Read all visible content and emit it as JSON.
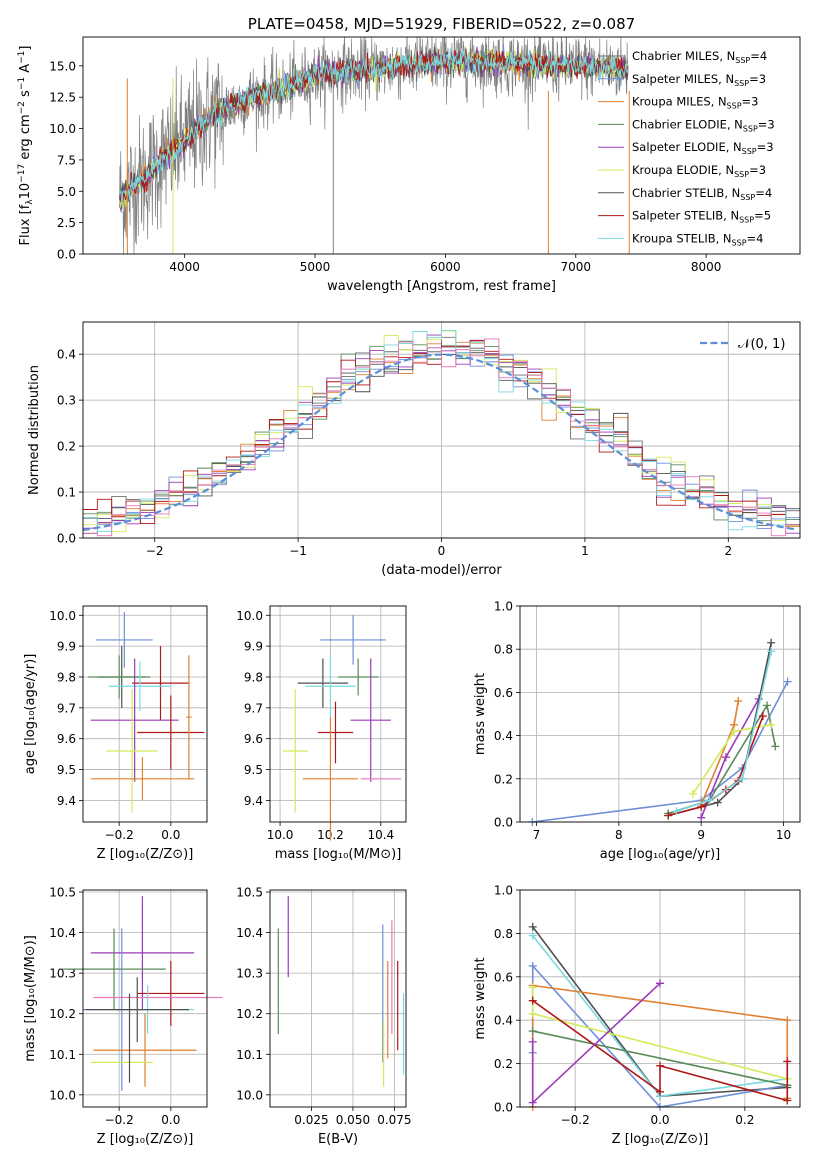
{
  "colors": {
    "cm": "#6f6f6f",
    "sm": "#6f8fd8",
    "km": "#e08030",
    "ce": "#5a8a5a",
    "se": "#9a3ab8",
    "ke": "#d4ea5a",
    "cs": "#505050",
    "ss": "#b01818",
    "ks": "#7ad8e0",
    "x_extra": "#e878b8"
  },
  "chart_data": [
    {
      "id": "spectrum",
      "type": "line",
      "title": "PLATE=0458, MJD=51929, FIBERID=0522, z=0.087",
      "xlabel": "wavelength [Angstrom, rest frame]",
      "ylabel": "Flux [f$_\\lambda$10$^{-17}$ erg cm$^{-2}$ s$^{-1}$ A$^{-1}$]",
      "ylabel_parts": [
        "Flux [f",
        "λ",
        "10",
        "−17",
        " erg cm",
        "−2",
        " s",
        "−1",
        " A",
        "−1",
        "]"
      ],
      "xlim": [
        3220,
        8720
      ],
      "ylim": [
        0,
        17.3
      ],
      "xticks": [
        4000,
        5000,
        6000,
        7000,
        8000
      ],
      "yticks": [
        "0.0",
        "2.5",
        "5.0",
        "7.5",
        "10.0",
        "12.5",
        "15.0"
      ],
      "data_range": [
        3500,
        7400
      ],
      "continuum": [
        [
          3500,
          4.5
        ],
        [
          3700,
          6.2
        ],
        [
          3850,
          7.8
        ],
        [
          4000,
          9.0
        ],
        [
          4200,
          11.0
        ],
        [
          4500,
          12.5
        ],
        [
          4800,
          13.3
        ],
        [
          5000,
          14.2
        ],
        [
          5200,
          14.6
        ],
        [
          5500,
          14.8
        ],
        [
          5800,
          15.2
        ],
        [
          6100,
          15.4
        ],
        [
          6400,
          15.3
        ],
        [
          6700,
          15.1
        ],
        [
          7000,
          15.0
        ],
        [
          7200,
          14.9
        ],
        [
          7400,
          14.8
        ]
      ],
      "legend_position": "upper right",
      "legend": [
        {
          "name": "Chabrier MILES, N",
          "sub": "SSP",
          "val": "=4",
          "ckey": "cm"
        },
        {
          "name": "Salpeter MILES, N",
          "sub": "SSP",
          "val": "=3",
          "ckey": "sm"
        },
        {
          "name": "Kroupa MILES, N",
          "sub": "SSP",
          "val": "=3",
          "ckey": "km"
        },
        {
          "name": "Chabrier ELODIE, N",
          "sub": "SSP",
          "val": "=3",
          "ckey": "ce"
        },
        {
          "name": "Salpeter ELODIE, N",
          "sub": "SSP",
          "val": "=3",
          "ckey": "se"
        },
        {
          "name": "Kroupa ELODIE, N",
          "sub": "SSP",
          "val": "=3",
          "ckey": "ke"
        },
        {
          "name": "Chabrier STELIB, N",
          "sub": "SSP",
          "val": "=4",
          "ckey": "cs"
        },
        {
          "name": "Salpeter STELIB, N",
          "sub": "SSP",
          "val": "=5",
          "ckey": "ss"
        },
        {
          "name": "Kroupa STELIB, N",
          "sub": "SSP",
          "val": "=4",
          "ckey": "ks"
        }
      ]
    },
    {
      "id": "residuals",
      "type": "histogram",
      "xlabel": "(data-model)/error",
      "ylabel": "Normed distribution",
      "xlim": [
        -2.5,
        2.5
      ],
      "ylim": [
        0,
        0.47
      ],
      "xticks": [
        "−2",
        "−1",
        "0",
        "1",
        "2"
      ],
      "xtick_vals": [
        -2,
        -1,
        0,
        1,
        2
      ],
      "yticks": [
        "0.0",
        "0.1",
        "0.2",
        "0.3",
        "0.4"
      ],
      "ytick_vals": [
        0,
        0.1,
        0.2,
        0.3,
        0.4
      ],
      "grid": true,
      "bin_width": 0.1,
      "gaussian_label": "𝒩(0, 1)",
      "gaussian_color": "#5b8ed6",
      "legend_position": "upper right"
    },
    {
      "id": "age_vs_Z",
      "type": "errorbar",
      "xlabel": "Z [log₁₀(Z/Z⊙)]",
      "ylabel": "age  [log₁₀(age/yr)]",
      "xlim": [
        -0.34,
        0.14
      ],
      "ylim": [
        9.33,
        10.03
      ],
      "xticks": [
        "−0.2",
        "0.0"
      ],
      "xtick_vals": [
        -0.2,
        0.0
      ],
      "yticks": [
        "9.4",
        "9.5",
        "9.6",
        "9.7",
        "9.8",
        "9.9",
        "10.0"
      ],
      "ytick_vals": [
        9.4,
        9.5,
        9.6,
        9.7,
        9.8,
        9.9,
        10.0
      ],
      "grid": true,
      "points": [
        {
          "ckey": "sm",
          "x": -0.18,
          "xerr": 0.11,
          "y": 9.92,
          "yerr": 0.09
        },
        {
          "ckey": "cs",
          "x": -0.19,
          "xerr": 0.09,
          "y": 9.8,
          "yerr": 0.1
        },
        {
          "ckey": "ce",
          "x": -0.2,
          "xerr": 0.12,
          "y": 9.8,
          "yerr": 0.07
        },
        {
          "ckey": "ss",
          "x": -0.04,
          "xerr": 0.11,
          "y": 9.78,
          "yerr": 0.12
        },
        {
          "ckey": "ks",
          "x": -0.12,
          "xerr": 0.12,
          "y": 9.77,
          "yerr": 0.08
        },
        {
          "ckey": "se",
          "x": -0.14,
          "xerr": 0.17,
          "y": 9.66,
          "yerr": 0.2
        },
        {
          "ckey": "ss",
          "x": 0.0,
          "xerr": 0.13,
          "y": 9.62,
          "yerr": 0.12
        },
        {
          "ckey": "ke",
          "x": -0.15,
          "xerr": 0.1,
          "y": 9.56,
          "yerr": 0.2
        },
        {
          "ckey": "km",
          "x": -0.11,
          "xerr": 0.2,
          "y": 9.47,
          "yerr": 0.07
        },
        {
          "ckey": "km",
          "x": 0.07,
          "xerr": 0.01,
          "y": 9.67,
          "yerr": 0.2
        }
      ]
    },
    {
      "id": "age_vs_mass",
      "type": "errorbar",
      "xlabel": "mass [log₁₀(M/M⊙)]",
      "xlim": [
        9.96,
        10.5
      ],
      "ylim": [
        9.33,
        10.03
      ],
      "xticks": [
        "10.0",
        "10.2",
        "10.4"
      ],
      "xtick_vals": [
        10.0,
        10.2,
        10.4
      ],
      "yticks": [
        "9.4",
        "9.5",
        "9.6",
        "9.7",
        "9.8",
        "9.9",
        "10.0"
      ],
      "ytick_vals": [
        9.4,
        9.5,
        9.6,
        9.7,
        9.8,
        9.9,
        10.0
      ],
      "grid": true,
      "points": [
        {
          "ckey": "sm",
          "x": 10.29,
          "xerr": 0.13,
          "y": 9.92,
          "yerr": 0.08
        },
        {
          "ckey": "cs",
          "x": 10.17,
          "xerr": 0.1,
          "y": 9.78,
          "yerr": 0.08
        },
        {
          "ckey": "ce",
          "x": 10.31,
          "xerr": 0.08,
          "y": 9.8,
          "yerr": 0.06
        },
        {
          "ckey": "ks",
          "x": 10.2,
          "xerr": 0.1,
          "y": 9.77,
          "yerr": 0.1
        },
        {
          "ckey": "se",
          "x": 10.36,
          "xerr": 0.08,
          "y": 9.66,
          "yerr": 0.2
        },
        {
          "ckey": "ss",
          "x": 10.22,
          "xerr": 0.07,
          "y": 9.62,
          "yerr": 0.1
        },
        {
          "ckey": "ke",
          "x": 10.06,
          "xerr": 0.05,
          "y": 9.56,
          "yerr": 0.2
        },
        {
          "ckey": "km",
          "x": 10.2,
          "xerr": 0.11,
          "y": 9.47,
          "yerr": 0.2
        },
        {
          "ckey": "x_extra",
          "x": 10.4,
          "xerr": 0.08,
          "y": 9.47,
          "yerr": 0.0
        }
      ]
    },
    {
      "id": "mass_weight_vs_age",
      "type": "line",
      "xlabel": "age  [log₁₀(age/yr)]",
      "ylabel": "mass weight",
      "xlim": [
        6.8,
        10.2
      ],
      "ylim": [
        0,
        1.0
      ],
      "xticks": [
        "7",
        "8",
        "9",
        "10"
      ],
      "xtick_vals": [
        7,
        8,
        9,
        10
      ],
      "yticks": [
        "0.0",
        "0.2",
        "0.4",
        "0.6",
        "0.8",
        "1.0"
      ],
      "ytick_vals": [
        0,
        0.2,
        0.4,
        0.6,
        0.8,
        1.0
      ],
      "grid": true,
      "series": [
        {
          "ckey": "sm",
          "x": [
            6.95,
            9.0,
            9.5,
            10.05
          ],
          "y": [
            0.0,
            0.1,
            0.25,
            0.65
          ]
        },
        {
          "ckey": "km",
          "x": [
            9.0,
            9.4,
            9.45
          ],
          "y": [
            0.08,
            0.45,
            0.56
          ]
        },
        {
          "ckey": "ce",
          "x": [
            8.6,
            9.1,
            9.8,
            9.9
          ],
          "y": [
            0.04,
            0.1,
            0.54,
            0.35
          ]
        },
        {
          "ckey": "se",
          "x": [
            9.0,
            9.3,
            9.7
          ],
          "y": [
            0.02,
            0.3,
            0.57
          ]
        },
        {
          "ckey": "ke",
          "x": [
            8.9,
            9.4,
            9.85
          ],
          "y": [
            0.13,
            0.42,
            0.45
          ]
        },
        {
          "ckey": "cs",
          "x": [
            8.6,
            9.2,
            9.5,
            9.85
          ],
          "y": [
            0.03,
            0.09,
            0.2,
            0.83
          ]
        },
        {
          "ckey": "ss",
          "x": [
            8.6,
            9.0,
            9.3,
            9.45,
            9.75
          ],
          "y": [
            0.03,
            0.07,
            0.15,
            0.19,
            0.49
          ]
        },
        {
          "ckey": "ks",
          "x": [
            8.7,
            9.1,
            9.5,
            9.85
          ],
          "y": [
            0.05,
            0.1,
            0.2,
            0.79
          ]
        }
      ]
    },
    {
      "id": "mass_vs_Z",
      "type": "errorbar",
      "xlabel": "Z [log₁₀(Z/Z⊙)]",
      "ylabel": "mass [log₁₀(M/M⊙)]",
      "xlim": [
        -0.34,
        0.14
      ],
      "ylim": [
        9.97,
        10.505
      ],
      "xticks": [
        "−0.2",
        "0.0"
      ],
      "xtick_vals": [
        -0.2,
        0.0
      ],
      "yticks": [
        "10.0",
        "10.1",
        "10.2",
        "10.3",
        "10.4",
        "10.5"
      ],
      "ytick_vals": [
        10.0,
        10.1,
        10.2,
        10.3,
        10.4,
        10.5
      ],
      "grid": true,
      "points": [
        {
          "ckey": "se",
          "x": -0.11,
          "xerr": 0.2,
          "y": 10.35,
          "yerr": 0.14
        },
        {
          "ckey": "ce",
          "x": -0.22,
          "xerr": 0.2,
          "y": 10.31,
          "yerr": 0.1
        },
        {
          "ckey": "ss",
          "x": 0.0,
          "xerr": 0.13,
          "y": 10.25,
          "yerr": 0.08
        },
        {
          "ckey": "x_extra",
          "x": -0.05,
          "xerr": 0.25,
          "y": 10.24,
          "yerr": 0.0
        },
        {
          "ckey": "sm",
          "x": -0.19,
          "xerr": 0.15,
          "y": 10.21,
          "yerr": 0.2
        },
        {
          "ckey": "ks",
          "x": -0.09,
          "xerr": 0.18,
          "y": 10.21,
          "yerr": 0.06
        },
        {
          "ckey": "cs",
          "x": -0.13,
          "xerr": 0.2,
          "y": 10.21,
          "yerr": 0.08
        },
        {
          "ckey": "km",
          "x": -0.1,
          "xerr": 0.2,
          "y": 10.11,
          "yerr": 0.09
        },
        {
          "ckey": "ke",
          "x": -0.19,
          "xerr": 0.12,
          "y": 10.08,
          "yerr": 0.0
        },
        {
          "ckey": "cs",
          "x": -0.16,
          "xerr": 0.0,
          "y": 10.14,
          "yerr": 0.11
        }
      ]
    },
    {
      "id": "mass_vs_ebv",
      "type": "errorbar",
      "xlabel": "E(B-V)",
      "xlim": [
        0.0,
        0.082
      ],
      "ylim": [
        9.97,
        10.505
      ],
      "xticks": [
        "0.025",
        "0.050",
        "0.075"
      ],
      "xtick_vals": [
        0.025,
        0.05,
        0.075
      ],
      "yticks": [
        "10.0",
        "10.1",
        "10.2",
        "10.3",
        "10.4",
        "10.5"
      ],
      "ytick_vals": [
        10.0,
        10.1,
        10.2,
        10.3,
        10.4,
        10.5
      ],
      "grid": true,
      "points": [
        {
          "ckey": "ce",
          "x": 0.005,
          "xerr": 0.0,
          "y": 10.28,
          "yerr": 0.13
        },
        {
          "ckey": "se",
          "x": 0.011,
          "xerr": 0.0,
          "y": 10.39,
          "yerr": 0.1
        },
        {
          "ckey": "sm",
          "x": 0.068,
          "xerr": 0.0,
          "y": 10.25,
          "yerr": 0.17
        },
        {
          "ckey": "ke",
          "x": 0.0685,
          "xerr": 0.0,
          "y": 10.1,
          "yerr": 0.08
        },
        {
          "ckey": "km",
          "x": 0.071,
          "xerr": 0.0,
          "y": 10.21,
          "yerr": 0.12
        },
        {
          "ckey": "x_extra",
          "x": 0.0735,
          "xerr": 0.0,
          "y": 10.29,
          "yerr": 0.14
        },
        {
          "ckey": "ss",
          "x": 0.077,
          "xerr": 0.0,
          "y": 10.22,
          "yerr": 0.11
        },
        {
          "ckey": "ks",
          "x": 0.0805,
          "xerr": 0.0,
          "y": 10.15,
          "yerr": 0.1
        }
      ]
    },
    {
      "id": "mass_weight_vs_Z",
      "type": "line",
      "xlabel": "Z [log₁₀(Z/Z⊙)]",
      "ylabel": "mass weight",
      "xlim": [
        -0.33,
        0.33
      ],
      "ylim": [
        0,
        1.0
      ],
      "xticks": [
        "−0.2",
        "0.0",
        "0.2"
      ],
      "xtick_vals": [
        -0.2,
        0.0,
        0.2
      ],
      "yticks": [
        "0.0",
        "0.2",
        "0.4",
        "0.6",
        "0.8",
        "1.0"
      ],
      "ytick_vals": [
        0,
        0.2,
        0.4,
        0.6,
        0.8,
        1.0
      ],
      "grid": true,
      "series": [
        {
          "ckey": "cs",
          "x": [
            -0.3,
            0.0,
            0.3
          ],
          "y": [
            0.83,
            0.05,
            0.09
          ]
        },
        {
          "ckey": "ks",
          "x": [
            -0.3,
            0.0,
            0.3
          ],
          "y": [
            0.79,
            0.05,
            0.13
          ]
        },
        {
          "ckey": "sm",
          "x": [
            -0.3,
            -0.3,
            0.0,
            0.3
          ],
          "y": [
            0.25,
            0.65,
            0.0,
            0.1
          ]
        },
        {
          "ckey": "km",
          "x": [
            -0.3,
            -0.3,
            0.3,
            0.3
          ],
          "y": [
            0.0,
            0.56,
            0.4,
            0.04
          ]
        },
        {
          "ckey": "ke",
          "x": [
            -0.3,
            -0.3,
            0.3
          ],
          "y": [
            0.55,
            0.43,
            0.13
          ]
        },
        {
          "ckey": "ce",
          "x": [
            -0.3,
            0.3
          ],
          "y": [
            0.35,
            0.1
          ]
        },
        {
          "ckey": "ss",
          "x": [
            -0.3,
            0.0,
            0.0,
            0.3,
            0.3
          ],
          "y": [
            0.49,
            0.07,
            0.19,
            0.03,
            0.21
          ]
        },
        {
          "ckey": "se",
          "x": [
            0.0,
            -0.3,
            -0.3
          ],
          "y": [
            0.57,
            0.02,
            0.3
          ]
        }
      ]
    }
  ]
}
